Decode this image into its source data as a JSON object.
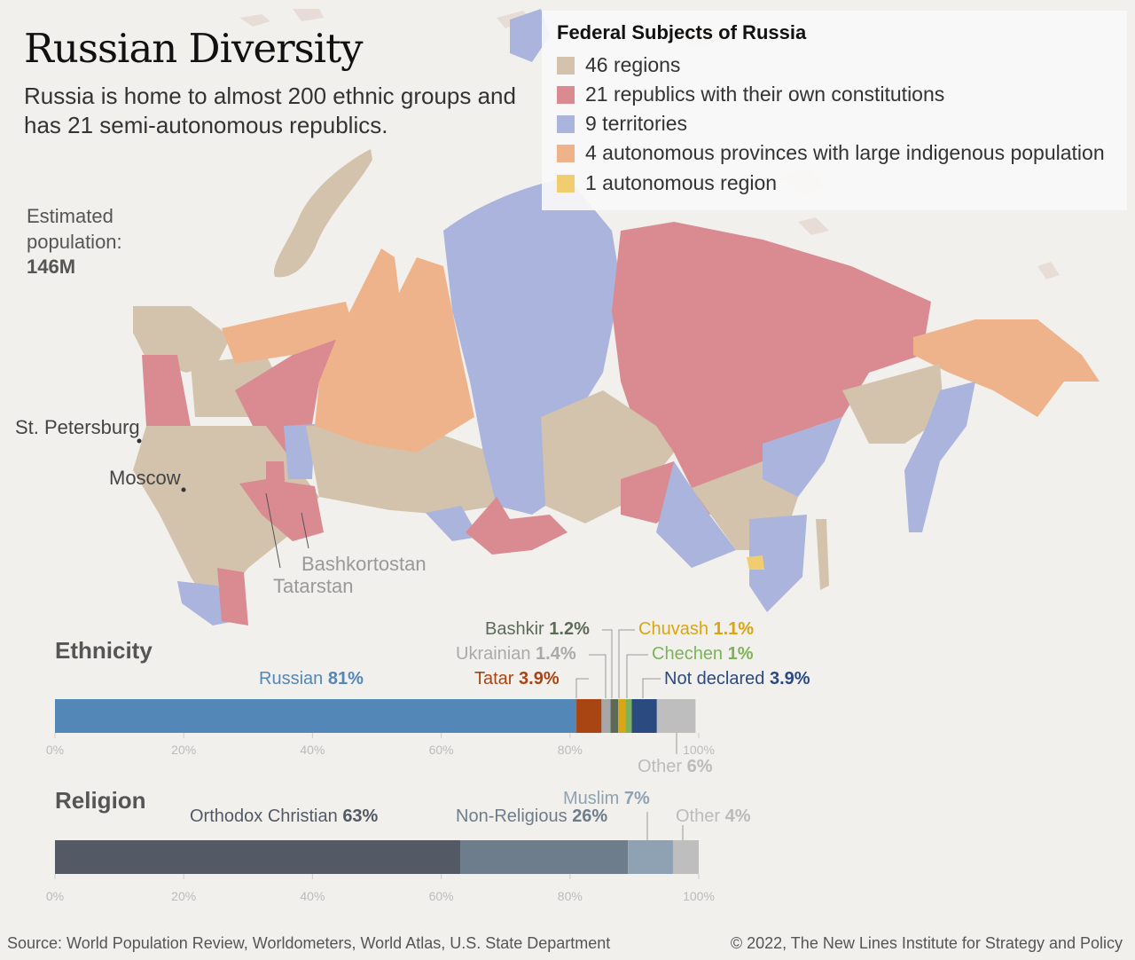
{
  "title": "Russian Diversity",
  "subtitle": "Russia is home to almost 200 ethnic groups and has 21 semi-autonomous republics.",
  "population": {
    "label": "Estimated population:",
    "value": "146M"
  },
  "legend": {
    "title": "Federal Subjects of Russia",
    "items": [
      {
        "label": "46 regions",
        "color": "#d3c3ad"
      },
      {
        "label": "21 republics with their own constitutions",
        "color": "#d98b91"
      },
      {
        "label": "9 territories",
        "color": "#aab4dc"
      },
      {
        "label": "4 autonomous provinces with large indigenous population",
        "color": "#eeb38a"
      },
      {
        "label": "1 autonomous region",
        "color": "#f0cd6e"
      }
    ]
  },
  "cities": {
    "st_petersburg": "St. Petersburg",
    "moscow": "Moscow"
  },
  "republics": {
    "bashkortostan": "Bashkortostan",
    "tatarstan": "Tatarstan"
  },
  "chart_data": [
    {
      "type": "bar",
      "orientation": "horizontal-stacked",
      "title": "Ethnicity",
      "xlim": [
        0,
        100
      ],
      "ticks": [
        "0%",
        "20%",
        "40%",
        "60%",
        "80%",
        "100%"
      ],
      "series": [
        {
          "name": "Russian",
          "value_label": "81%",
          "value": 81,
          "color": "#5387b8"
        },
        {
          "name": "Tatar",
          "value_label": "3.9%",
          "value": 3.9,
          "color": "#a84512"
        },
        {
          "name": "Ukrainian",
          "value_label": "1.4%",
          "value": 1.4,
          "color": "#a7a7a7"
        },
        {
          "name": "Bashkir",
          "value_label": "1.2%",
          "value": 1.2,
          "color": "#5c6b58"
        },
        {
          "name": "Chuvash",
          "value_label": "1.1%",
          "value": 1.1,
          "color": "#d9a515"
        },
        {
          "name": "Chechen",
          "value_label": "1%",
          "value": 1,
          "color": "#7cb35a"
        },
        {
          "name": "Not declared",
          "value_label": "3.9%",
          "value": 3.9,
          "color": "#2a4a80"
        },
        {
          "name": "Other",
          "value_label": "6%",
          "value": 6,
          "color": "#bebebe"
        }
      ]
    },
    {
      "type": "bar",
      "orientation": "horizontal-stacked",
      "title": "Religion",
      "xlim": [
        0,
        100
      ],
      "ticks": [
        "0%",
        "20%",
        "40%",
        "60%",
        "80%",
        "100%"
      ],
      "series": [
        {
          "name": "Orthodox Christian",
          "value_label": "63%",
          "value": 63,
          "color": "#535a66"
        },
        {
          "name": "Non-Religious",
          "value_label": "26%",
          "value": 26,
          "color": "#6e7d8b"
        },
        {
          "name": "Muslim",
          "value_label": "7%",
          "value": 7,
          "color": "#8fa2b3"
        },
        {
          "name": "Other",
          "value_label": "4%",
          "value": 4,
          "color": "#bebebe"
        }
      ]
    }
  ],
  "footer": {
    "source": "Source: World Population Review, Worldometers, World Atlas, U.S. State Department",
    "copyright": "© 2022, The New Lines Institute for Strategy and Policy"
  }
}
